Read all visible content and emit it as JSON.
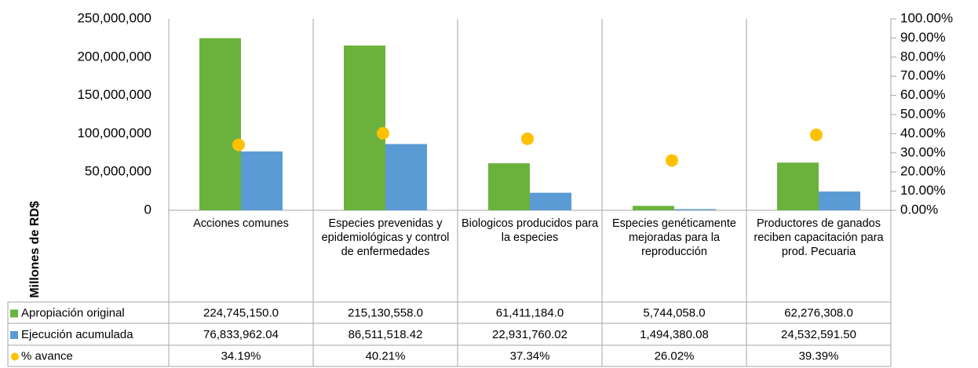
{
  "chart_data": {
    "type": "bar",
    "y_label": "Millones de RD$",
    "categories": [
      "Acciones comunes",
      "Especies prevenidas y epidemiológicas y control de enfermedades",
      "Biologicos producidos para la especies",
      "Especies genéticamente mejoradas para la reproducción",
      "Productores de ganados reciben capacitación para prod. Pecuaria"
    ],
    "series": [
      {
        "name": "Apropiación  original",
        "color": "#6bb23d",
        "values": [
          224745150.0,
          215130558.0,
          61411184.0,
          5744058.0,
          62276308.0
        ],
        "value_labels": [
          "224,745,150.0",
          "215,130,558.0",
          "61,411,184.0",
          "5,744,058.0",
          "62,276,308.0"
        ]
      },
      {
        "name": "Ejecución acumulada",
        "color": "#5b9bd5",
        "values": [
          76833962.04,
          86511518.42,
          22931760.02,
          1494380.08,
          24532591.5
        ],
        "value_labels": [
          "76,833,962.04",
          "86,511,518.42",
          "22,931,760.02",
          "1,494,380.08",
          "24,532,591.50"
        ]
      },
      {
        "name": "% avance",
        "color": "#ffc000",
        "axis": "y2",
        "marker": "circle",
        "values": [
          34.19,
          40.21,
          37.34,
          26.02,
          39.39
        ],
        "value_labels": [
          "34.19%",
          "40.21%",
          "37.34%",
          "26.02%",
          "39.39%"
        ]
      }
    ],
    "ylim": [
      0,
      250000000
    ],
    "yticks": [
      0,
      {
        "value": 50000000,
        "label": "50,000,000"
      },
      {
        "value": 100000000,
        "label": "100,000,000"
      },
      {
        "value": 150000000,
        "label": "150,000,000"
      },
      {
        "value": 200000000,
        "label": "200,000,000"
      },
      {
        "value": 250000000,
        "label": "250,000,000"
      }
    ],
    "y2lim": [
      0,
      100
    ],
    "y2ticks": [
      {
        "value": 0,
        "label": "0.00%"
      },
      {
        "value": 10,
        "label": "10.00%"
      },
      {
        "value": 20,
        "label": "20.00%"
      },
      {
        "value": 30,
        "label": "30.00%"
      },
      {
        "value": 40,
        "label": "40.00%"
      },
      {
        "value": 50,
        "label": "50.00%"
      },
      {
        "value": 60,
        "label": "60.00%"
      },
      {
        "value": 70,
        "label": "70.00%"
      },
      {
        "value": 80,
        "label": "80.00%"
      },
      {
        "value": 90,
        "label": "90.00%"
      },
      {
        "value": 100,
        "label": "100.00%"
      }
    ],
    "grid": false,
    "data_table": true
  }
}
